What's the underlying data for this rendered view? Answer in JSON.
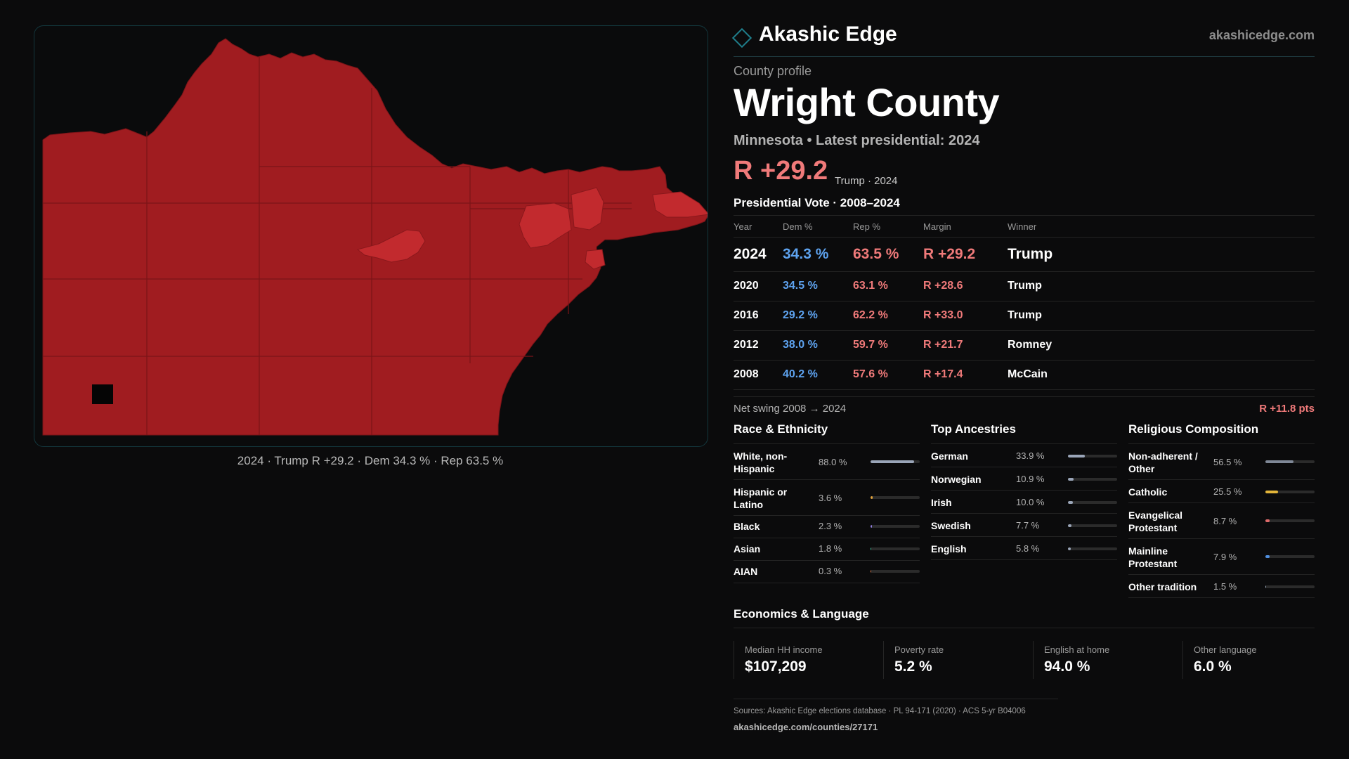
{
  "brand": {
    "name": "Akashic Edge",
    "domain": "akashicedge.com"
  },
  "profile": {
    "kicker": "County profile",
    "title": "Wright County",
    "subtitle": "Minnesota • Latest presidential: 2024",
    "margin": "R +29.2",
    "margin_note": "Trump · 2024"
  },
  "map": {
    "caption": "2024 · Trump R +29.2 · Dem 34.3 % · Rep 63.5 %",
    "fill_color": "#a01c20",
    "town_color": "#c22a2e",
    "border_color": "#13373d"
  },
  "results": {
    "heading": "Presidential Vote · 2008–2024",
    "columns": [
      "Year",
      "Dem %",
      "Rep %",
      "Margin",
      "Winner"
    ],
    "rows": [
      {
        "year": "2024",
        "dem": "34.3 %",
        "rep": "63.5 %",
        "margin": "R +29.2",
        "winner": "Trump"
      },
      {
        "year": "2020",
        "dem": "34.5 %",
        "rep": "63.1 %",
        "margin": "R +28.6",
        "winner": "Trump"
      },
      {
        "year": "2016",
        "dem": "29.2 %",
        "rep": "62.2 %",
        "margin": "R +33.0",
        "winner": "Trump"
      },
      {
        "year": "2012",
        "dem": "38.0 %",
        "rep": "59.7 %",
        "margin": "R +21.7",
        "winner": "Romney"
      },
      {
        "year": "2008",
        "dem": "40.2 %",
        "rep": "57.6 %",
        "margin": "R +17.4",
        "winner": "McCain"
      }
    ],
    "swing_label": "Net swing 2008 → 2024",
    "swing_value": "R +11.8 pts"
  },
  "race": {
    "heading": "Race & Ethnicity",
    "items": [
      {
        "label": "White, non-Hispanic",
        "pct": "88.0 %",
        "value": 88.0,
        "color": "#9aa5b8"
      },
      {
        "label": "Hispanic or Latino",
        "pct": "3.6 %",
        "value": 3.6,
        "color": "#e3a33a"
      },
      {
        "label": "Black",
        "pct": "2.3 %",
        "value": 2.3,
        "color": "#8f7de0"
      },
      {
        "label": "Asian",
        "pct": "1.8 %",
        "value": 1.8,
        "color": "#3fbf9a"
      },
      {
        "label": "AIAN",
        "pct": "0.3 %",
        "value": 0.3,
        "color": "#e07b4a"
      }
    ]
  },
  "ancestry": {
    "heading": "Top Ancestries",
    "items": [
      {
        "label": "German",
        "pct": "33.9 %",
        "value": 33.9,
        "color": "#9aa5b8"
      },
      {
        "label": "Norwegian",
        "pct": "10.9 %",
        "value": 10.9,
        "color": "#9aa5b8"
      },
      {
        "label": "Irish",
        "pct": "10.0 %",
        "value": 10.0,
        "color": "#9aa5b8"
      },
      {
        "label": "Swedish",
        "pct": "7.7 %",
        "value": 7.7,
        "color": "#9aa5b8"
      },
      {
        "label": "English",
        "pct": "5.8 %",
        "value": 5.8,
        "color": "#9aa5b8"
      }
    ]
  },
  "religion": {
    "heading": "Religious Composition",
    "items": [
      {
        "label": "Non-adherent / Other",
        "pct": "56.5 %",
        "value": 56.5,
        "color": "#7f8897"
      },
      {
        "label": "Catholic",
        "pct": "25.5 %",
        "value": 25.5,
        "color": "#e3b53a"
      },
      {
        "label": "Evangelical Protestant",
        "pct": "8.7 %",
        "value": 8.7,
        "color": "#e06a6a"
      },
      {
        "label": "Mainline Protestant",
        "pct": "7.9 %",
        "value": 7.9,
        "color": "#4f8fe0"
      },
      {
        "label": "Other tradition",
        "pct": "1.5 %",
        "value": 1.5,
        "color": "#9aa5b8"
      }
    ]
  },
  "economics": {
    "heading": "Economics & Language",
    "stats": [
      {
        "label": "Median HH income",
        "value": "$107,209"
      },
      {
        "label": "Poverty rate",
        "value": "5.2 %"
      },
      {
        "label": "English at home",
        "value": "94.0 %"
      },
      {
        "label": "Other language",
        "value": "6.0 %"
      }
    ]
  },
  "footer": {
    "sources": "Sources: Akashic Edge elections database · PL 94-171 (2020) · ACS 5-yr B04006",
    "url": "akashicedge.com/counties/27171"
  }
}
